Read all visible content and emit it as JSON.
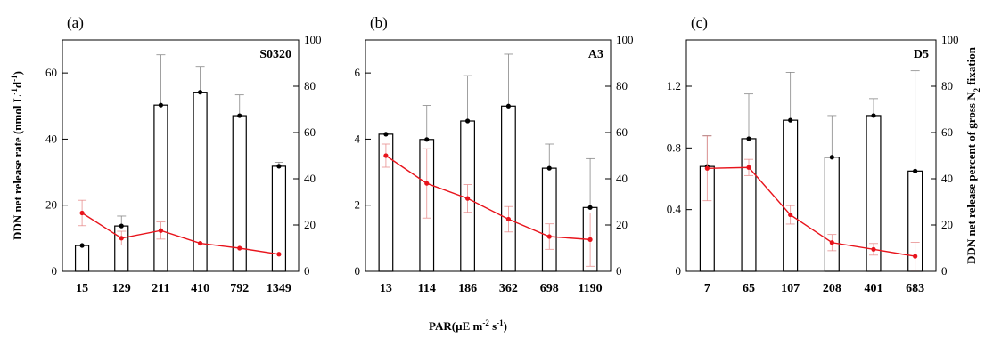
{
  "figure": {
    "ylabel_left": "DDN net release rate  (nmol L-1d-1)",
    "ylabel_left_parts": {
      "pre": "DDN net release rate  (nmol L",
      "sup1": "-1",
      "mid": "d",
      "sup2": "-1",
      "post": ")"
    },
    "ylabel_right": "DDN net release percent of gross N2 fixation",
    "ylabel_right_parts": {
      "pre": "DDN net release percent of gross N",
      "sub": "2",
      "post": " fixation"
    },
    "xlabel": "PAR(µE m-2 s-1)",
    "xlabel_parts": {
      "pre": "PAR(µE m",
      "sup1": "-2",
      "mid": " s",
      "sup2": "-1",
      "post": ")"
    },
    "colors": {
      "bar": "#000000",
      "line": "#e8141c",
      "line_err": "#e89090",
      "bar_err": "#888888"
    }
  },
  "chart_data": [
    {
      "type": "bar",
      "panel": "(a)",
      "station": "S0320",
      "categories": [
        "15",
        "129",
        "211",
        "410",
        "792",
        "1349"
      ],
      "ylim_left": [
        0,
        70
      ],
      "yticks_left": [
        0,
        20,
        40,
        60
      ],
      "ylim_right": [
        0,
        100
      ],
      "yticks_right": [
        0,
        20,
        40,
        60,
        80,
        100
      ],
      "bars": {
        "values": [
          7.8,
          13.7,
          50.3,
          54.2,
          47.1,
          31.8
        ],
        "errors": [
          0,
          3.0,
          15.2,
          7.8,
          6.3,
          1.2
        ]
      },
      "line": {
        "values": [
          25.2,
          14.3,
          17.6,
          12.1,
          10.0,
          7.4
        ],
        "errors": [
          5.5,
          3.0,
          3.7,
          0,
          0,
          0
        ]
      }
    },
    {
      "type": "bar",
      "panel": "(b)",
      "station": "A3",
      "categories": [
        "13",
        "114",
        "186",
        "362",
        "698",
        "1190"
      ],
      "ylim_left": [
        0,
        7
      ],
      "yticks_left": [
        0,
        2,
        4,
        6
      ],
      "ylim_right": [
        0,
        100
      ],
      "yticks_right": [
        0,
        20,
        40,
        60,
        80,
        100
      ],
      "bars": {
        "values": [
          4.15,
          3.99,
          4.55,
          5.0,
          3.12,
          1.93
        ],
        "errors": [
          0,
          1.03,
          1.37,
          1.57,
          0.73,
          1.48
        ]
      },
      "line": {
        "values": [
          50.0,
          38.0,
          31.5,
          22.5,
          15.0,
          13.7
        ],
        "errors": [
          5.0,
          15.0,
          6.0,
          5.5,
          5.5,
          11.5
        ]
      }
    },
    {
      "type": "bar",
      "panel": "(c)",
      "station": "D5",
      "categories": [
        "7",
        "65",
        "107",
        "208",
        "401",
        "683"
      ],
      "ylim_left": [
        0,
        1.5
      ],
      "yticks_left": [
        0,
        0.4,
        0.8,
        1.2
      ],
      "yticklabels_left": [
        "0",
        "0.4",
        "0.8",
        "1.2"
      ],
      "ylim_right": [
        0,
        100
      ],
      "yticks_right": [
        0,
        20,
        40,
        60,
        80,
        100
      ],
      "bars": {
        "values": [
          0.68,
          0.86,
          0.98,
          0.74,
          1.01,
          0.65
        ],
        "errors": [
          0.2,
          0.29,
          0.31,
          0.27,
          0.11,
          0.65
        ]
      },
      "line": {
        "values": [
          44.5,
          44.9,
          24.4,
          12.4,
          9.5,
          6.5
        ],
        "errors": [
          14.0,
          3.5,
          4.0,
          3.5,
          2.5,
          6.0
        ]
      }
    }
  ]
}
